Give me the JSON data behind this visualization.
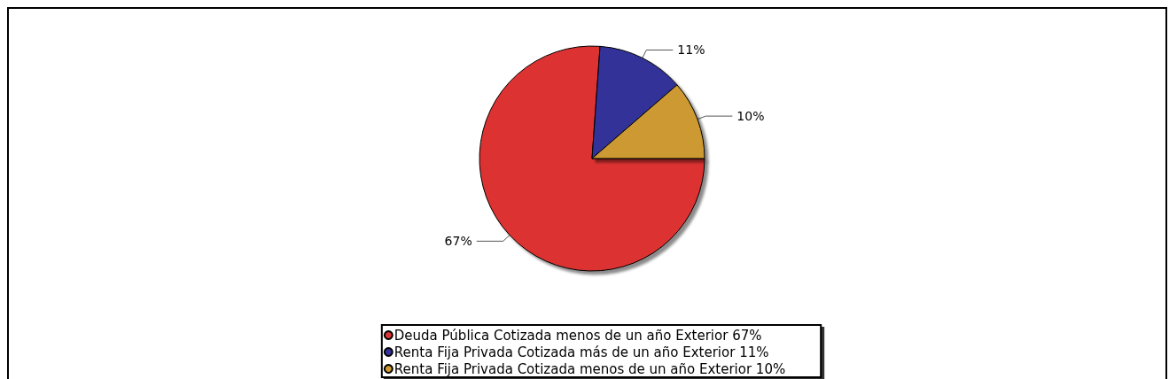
{
  "chart_data": {
    "type": "pie",
    "categories": [
      "Deuda Pública Cotizada menos de un año Exterior 67%",
      "Renta Fija Privada Cotizada más de un año Exterior 11%",
      "Renta Fija Privada Cotizada menos de un año Exterior 10%"
    ],
    "values": [
      67,
      11,
      10
    ],
    "value_labels": [
      "67%",
      "11%",
      "10%"
    ],
    "colors": [
      "#dd3333",
      "#333399",
      "#cc9933"
    ],
    "legend": "bottom"
  }
}
